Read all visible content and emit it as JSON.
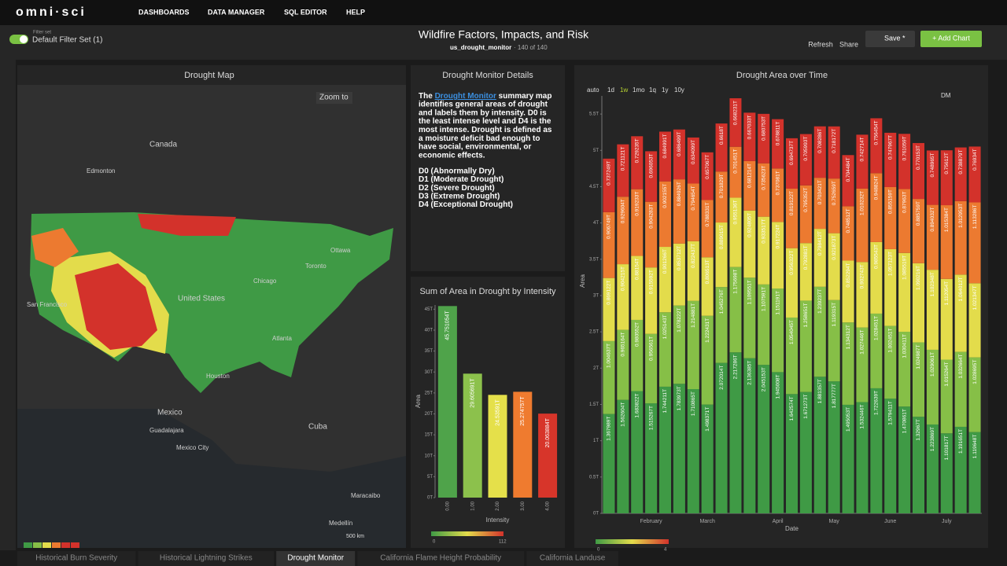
{
  "header": {
    "logo": "omni·sci",
    "nav": [
      "DASHBOARDS",
      "DATA MANAGER",
      "SQL EDITOR",
      "HELP"
    ]
  },
  "toolbar": {
    "filter_caption": "Filter set",
    "filter_set": "Default Filter Set (1)",
    "title": "Wildfire Factors, Impacts, and Risk",
    "source": "us_drought_monitor",
    "count": "· 140 of 140",
    "buttons": [
      "Refresh",
      "Share",
      "Save *",
      "+ Add Chart"
    ]
  },
  "map": {
    "title": "Drought Map",
    "zoom": "Zoom to",
    "scale": "500 km",
    "labels": [
      "Canada",
      "Edmonton",
      "Ottawa",
      "Toronto",
      "Chicago",
      "United States",
      "San Francisco",
      "Atlanta",
      "Houston",
      "Mexico",
      "Guadalajara",
      "Mexico City",
      "Cuba",
      "Maracaibo",
      "Medellín"
    ]
  },
  "details": {
    "title": "Drought Monitor Details",
    "lead": "The",
    "link": "Drought Monitor",
    "lead_rest": "summary map",
    "lines": [
      "identifies general areas of drought",
      "and labels them by intensity. D0 is",
      "the least intense level and D4 is the",
      "most intense. Drought is defined as",
      "a moisture deficit bad enough to",
      "have social, environmental, or",
      "economic effects."
    ],
    "levels": [
      "D0 (Abnormally Dry)",
      "D1 (Moderate Drought)",
      "D2 (Severe Drought)",
      "D3 (Extreme Drought)",
      "D4 (Exceptional Drought)"
    ]
  },
  "intensity_chart": {
    "type": "bar",
    "title": "Sum of Area in Drought by Intensity",
    "x_label": "Intensity",
    "y_label": "Area",
    "categories": [
      "0.00",
      "1.00",
      "2.00",
      "3.00",
      "4.00"
    ],
    "values": [
      45.751054,
      29.605691,
      24.53591,
      25.274757,
      20.063884
    ],
    "value_labels": [
      "45.751054T",
      "29.605691T",
      "24.53591T",
      "25.274757T",
      "20.063884T"
    ],
    "colors": [
      "#4fa34a",
      "#8cc14c",
      "#e5e04a",
      "#ef7b2f",
      "#d7352a"
    ],
    "ylim": [
      0,
      46
    ],
    "yticks": [
      {
        "value": 0,
        "label": "0T"
      },
      {
        "value": 5,
        "label": "5T"
      },
      {
        "value": 10,
        "label": "10T"
      },
      {
        "value": 15,
        "label": "15T"
      },
      {
        "value": 20,
        "label": "20T"
      },
      {
        "value": 25,
        "label": "25T"
      },
      {
        "value": 30,
        "label": "30T"
      },
      {
        "value": 35,
        "label": "35T"
      },
      {
        "value": 40,
        "label": "40T"
      },
      {
        "value": 45,
        "label": "45T"
      }
    ],
    "color_legend": [
      0,
      112
    ]
  },
  "area_chart": {
    "type": "stacked_bar",
    "title": "Drought Area over Time",
    "x_label": "Date",
    "y_label": "Area",
    "time_buttons": [
      "auto",
      "1d",
      "1w",
      "1mo",
      "1q",
      "1y",
      "10y"
    ],
    "active_button": "1w",
    "binning": "DM",
    "categories": [
      null,
      null,
      null,
      "February",
      null,
      null,
      null,
      "March",
      null,
      null,
      null,
      null,
      "April",
      null,
      null,
      null,
      "May",
      null,
      null,
      null,
      "June",
      null,
      null,
      null,
      "July",
      null,
      null
    ],
    "ylim": [
      0,
      5.75
    ],
    "yticks": [
      {
        "value": 0,
        "label": "0T"
      },
      {
        "value": 0.5,
        "label": "0.5T"
      },
      {
        "value": 1,
        "label": "1T"
      },
      {
        "value": 1.5,
        "label": "1.5T"
      },
      {
        "value": 2,
        "label": "2T"
      },
      {
        "value": 2.5,
        "label": "2.5T"
      },
      {
        "value": 3,
        "label": "3T"
      },
      {
        "value": 3.5,
        "label": "3.5T"
      },
      {
        "value": 4,
        "label": "4T"
      },
      {
        "value": 4.5,
        "label": "4.5T"
      },
      {
        "value": 5,
        "label": "5T"
      },
      {
        "value": 5.5,
        "label": "5.5T"
      }
    ],
    "color_legend": [
      0,
      4
    ],
    "series": [
      {
        "color": "#3f9a45",
        "values": [
          1.367989,
          1.562604,
          1.683822,
          1.515267,
          1.744211,
          1.783973,
          1.710865,
          1.498371,
          2.072014,
          2.217286,
          2.136385,
          2.045153,
          1.945008,
          1.642574,
          1.671273,
          1.881357,
          1.817777,
          1.495053,
          1.532446,
          1.722639,
          1.579411,
          1.470861,
          1.32967,
          1.223869,
          1.101817,
          1.191651,
          1.119648
        ],
        "value_labels": [
          "1.367989T",
          "1.562604T",
          "1.683822T",
          "1.515267T",
          "1.744211T",
          "1.783973T",
          "1.710865T",
          "1.498371T",
          "2.072014T",
          "2.217286T",
          "2.136385T",
          "2.045153T",
          "1.945008T",
          "1.642574T",
          "1.671273T",
          "1.881357T",
          "1.817777T",
          "1.495053T",
          "1.532446T",
          "1.722639T",
          "1.579411T",
          "1.470861T",
          "1.32967T",
          "1.223869T",
          "1.101817T",
          "1.191651T",
          "1.119648T"
        ]
      },
      {
        "color": "#86bf47",
        "values": [
          1.004637,
          0.965164,
          0.980552,
          0.956561,
          1.025143,
          1.078222,
          1.214881,
          1.222431,
          1.045276,
          1.175698,
          1.109551,
          1.107591,
          1.151191,
          1.054045,
          1.258651,
          1.239237,
          1.119315,
          1.134312,
          1.027446,
          1.028451,
          1.002451,
          1.030411,
          1.024987,
          1.029061,
          1.015264,
          1.032664,
          1.028695
        ],
        "value_labels": [
          "1.004637T",
          "0.965164T",
          "0.980552T",
          "0.956561T",
          "1.025143T",
          "1.078222T",
          "1.214881T",
          "1.222431T",
          "1.045276T",
          "1.175698T",
          "1.109551T",
          "1.107591T",
          "1.151191T",
          "1.054045T",
          "1.258651T",
          "1.239237T",
          "1.119315T",
          "1.134312T",
          "1.027446T",
          "1.028451T",
          "1.002451T",
          "1.030411T",
          "1.024987T",
          "1.029061T",
          "1.015264T",
          "1.032664T",
          "1.028695T"
        ]
      },
      {
        "color": "#e3dc4b",
        "values": [
          0.869122,
          0.904215,
          0.88154,
          0.915592,
          0.901266,
          0.853712,
          0.822437,
          0.806513,
          0.889015,
          0.955136,
          0.924805,
          0.933517,
          0.917224,
          0.956322,
          0.792881,
          0.798412,
          0.921873,
          0.852294,
          0.902743,
          0.985543,
          1.057123,
          1.085519,
          1.090216,
          1.102348,
          1.112054,
          1.064012,
          1.021347
        ],
        "value_labels": [
          "0.869122T",
          "0.904215T",
          "0.88154T",
          "0.915592T",
          "0.901266T",
          "0.853712T",
          "0.822437T",
          "0.806513T",
          "0.889015T",
          "0.955136T",
          "0.924805T",
          "0.933517T",
          "0.917224T",
          "0.956322T",
          "0.792881T",
          "0.798412T",
          "0.921873T",
          "0.852294T",
          "0.902743T",
          "0.985543T",
          "1.057123T",
          "1.085519T",
          "1.090216T",
          "1.102348T",
          "1.112054T",
          "1.064012T",
          "1.021347T"
        ]
      },
      {
        "color": "#ec7a30",
        "values": [
          0.906749,
          0.929604,
          0.919233,
          0.904283,
          0.902155,
          0.884926,
          0.794654,
          0.788331,
          0.701829,
          0.701451,
          0.681214,
          0.735623,
          0.737081,
          0.819122,
          0.795352,
          0.703421,
          0.752659,
          0.748512,
          1.010232,
          0.948824,
          0.855159,
          0.87963,
          0.885759,
          0.894032,
          1.015384,
          1.012953,
          1.113286
        ],
        "value_labels": [
          "0.906749T",
          "0.929604T",
          "0.919233T",
          "0.904283T",
          "0.902155T",
          "0.884926T",
          "0.794654T",
          "0.788331T",
          "0.701829T",
          "0.701451T",
          "0.681214T",
          "0.735623T",
          "0.737081T",
          "0.819122T",
          "0.795352T",
          "0.703421T",
          "0.752659T",
          "0.748512T",
          "1.010232T",
          "0.948824T",
          "0.855159T",
          "0.87963T",
          "0.885759T",
          "0.894032T",
          "1.015384T",
          "1.012953T",
          "1.113286T"
        ]
      },
      {
        "color": "#d3322b",
        "values": [
          0.737249,
          0.721121,
          0.729235,
          0.696053,
          0.684991,
          0.686499,
          0.634099,
          0.657067,
          0.6618,
          0.668231,
          0.667033,
          0.680753,
          0.678811,
          0.694737,
          0.705993,
          0.708286,
          0.718172,
          0.704484,
          0.742714,
          0.756454,
          0.747967,
          0.761059,
          0.770153,
          0.748965,
          0.75612,
          0.738879,
          0.76934
        ],
        "value_labels": [
          "0.737249T",
          "0.721121T",
          "0.729235T",
          "0.696053T",
          "0.684991T",
          "0.686499T",
          "0.634099T",
          "0.657067T",
          "0.6618T",
          "0.668231T",
          "0.667033T",
          "0.680753T",
          "0.678811T",
          "0.694737T",
          "0.705993T",
          "0.708286T",
          "0.718172T",
          "0.704484T",
          "0.742714T",
          "0.756454T",
          "0.747967T",
          "0.761059T",
          "0.770153T",
          "0.748965T",
          "0.75612T",
          "0.738879T",
          "0.76934T"
        ]
      }
    ]
  },
  "tabs": [
    "Historical Burn Severity",
    "Historical Lightning Strikes",
    "Drought Monitor",
    "California Flame Height Probability",
    "California Landuse"
  ],
  "active_tab": "Drought Monitor"
}
